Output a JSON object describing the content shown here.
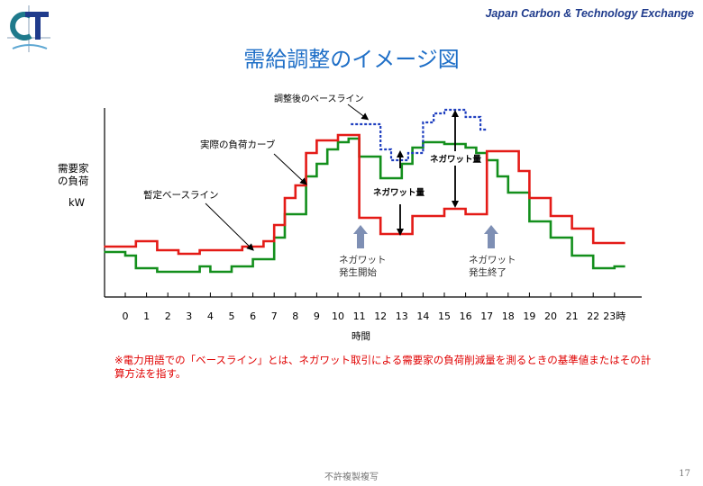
{
  "header": {
    "org_name": "Japan Carbon & Technology Exchange",
    "logo_text": "CT",
    "title": "需給調整のイメージ図"
  },
  "labels": {
    "y_axis_line1": "需要家",
    "y_axis_line2": "の負荷",
    "unit": "kW",
    "baseline_after": "調整後のベースライン",
    "actual_curve": "実際の負荷カーブ",
    "provisional_baseline": "暫定ベースライン",
    "negawatt_qty": "ネガワット量",
    "start_line1": "ネガワット",
    "start_line2": "発生開始",
    "end_line1": "ネガワット",
    "end_line2": "発生終了",
    "x_axis_title": "時間"
  },
  "colors": {
    "actual": "#e41b17",
    "baseline": "#138f1c",
    "adjusted": "#1f3fbf",
    "arrow": "#7e8fb4"
  },
  "chart_data": {
    "type": "line",
    "x": [
      0,
      1,
      2,
      3,
      4,
      5,
      6,
      7,
      8,
      9,
      10,
      11,
      12,
      13,
      14,
      15,
      16,
      17,
      18,
      19,
      20,
      21,
      22,
      23
    ],
    "tick_labels": [
      "0",
      "1",
      "2",
      "3",
      "4",
      "5",
      "6",
      "7",
      "8",
      "9",
      "10",
      "11",
      "12",
      "13",
      "14",
      "15",
      "16",
      "17",
      "18",
      "19",
      "20",
      "21",
      "22",
      "23時"
    ],
    "ylim": [
      0,
      100
    ],
    "series": [
      {
        "name": "実際の負荷カーブ",
        "points": [
          [
            -1,
            28
          ],
          [
            0,
            28
          ],
          [
            0,
            28
          ],
          [
            0.5,
            28
          ],
          [
            0.5,
            31
          ],
          [
            1.5,
            31
          ],
          [
            1.5,
            26
          ],
          [
            2.5,
            26
          ],
          [
            2.5,
            24
          ],
          [
            3.5,
            24
          ],
          [
            3.5,
            26
          ],
          [
            5,
            26
          ],
          [
            5,
            26
          ],
          [
            5.5,
            26
          ],
          [
            5.5,
            28
          ],
          [
            6.5,
            28
          ],
          [
            6.5,
            31
          ],
          [
            7,
            31
          ],
          [
            7,
            40
          ],
          [
            7.5,
            40
          ],
          [
            7.5,
            55
          ],
          [
            8,
            55
          ],
          [
            8,
            62
          ],
          [
            8.5,
            62
          ],
          [
            8.5,
            80
          ],
          [
            9,
            80
          ],
          [
            9,
            87
          ],
          [
            10,
            87
          ],
          [
            10,
            90
          ],
          [
            11,
            90
          ],
          [
            11,
            44
          ],
          [
            12,
            44
          ],
          [
            12,
            35
          ],
          [
            13.5,
            35
          ],
          [
            13.5,
            45
          ],
          [
            15,
            45
          ],
          [
            15,
            49
          ],
          [
            16,
            49
          ],
          [
            16,
            46
          ],
          [
            17,
            46
          ],
          [
            17,
            81
          ],
          [
            18.5,
            81
          ],
          [
            18.5,
            70
          ],
          [
            19,
            70
          ],
          [
            19,
            55
          ],
          [
            20,
            55
          ],
          [
            20,
            45
          ],
          [
            21,
            45
          ],
          [
            21,
            38
          ],
          [
            22,
            38
          ],
          [
            22,
            30
          ],
          [
            23.5,
            30
          ]
        ]
      },
      {
        "name": "暫定ベースライン",
        "points": [
          [
            -1,
            25
          ],
          [
            0,
            25
          ],
          [
            0,
            23
          ],
          [
            0.5,
            23
          ],
          [
            0.5,
            16
          ],
          [
            1.5,
            16
          ],
          [
            1.5,
            14
          ],
          [
            3.5,
            14
          ],
          [
            3.5,
            17
          ],
          [
            4,
            17
          ],
          [
            4,
            14
          ],
          [
            5,
            14
          ],
          [
            5,
            17
          ],
          [
            6,
            17
          ],
          [
            6,
            21
          ],
          [
            7,
            21
          ],
          [
            7,
            33
          ],
          [
            7.5,
            33
          ],
          [
            7.5,
            46
          ],
          [
            8.5,
            46
          ],
          [
            8.5,
            67
          ],
          [
            9,
            67
          ],
          [
            9,
            74
          ],
          [
            9.5,
            74
          ],
          [
            9.5,
            82
          ],
          [
            10,
            82
          ],
          [
            10,
            86
          ],
          [
            10.5,
            86
          ],
          [
            10.5,
            88
          ],
          [
            11,
            88
          ],
          [
            11,
            78
          ],
          [
            12,
            78
          ],
          [
            12,
            66
          ],
          [
            13,
            66
          ],
          [
            13,
            74
          ],
          [
            13.5,
            74
          ],
          [
            13.5,
            83
          ],
          [
            14,
            83
          ],
          [
            14,
            86
          ],
          [
            15,
            86
          ],
          [
            15,
            85
          ],
          [
            16,
            85
          ],
          [
            16,
            83
          ],
          [
            16.5,
            83
          ],
          [
            16.5,
            80
          ],
          [
            17,
            80
          ],
          [
            17,
            76
          ],
          [
            17.5,
            76
          ],
          [
            17.5,
            67
          ],
          [
            18,
            67
          ],
          [
            18,
            58
          ],
          [
            19,
            58
          ],
          [
            19,
            42
          ],
          [
            20,
            42
          ],
          [
            20,
            33
          ],
          [
            21,
            33
          ],
          [
            21,
            23
          ],
          [
            22,
            23
          ],
          [
            22,
            16
          ],
          [
            23,
            16
          ],
          [
            23,
            17
          ],
          [
            23.5,
            17
          ]
        ]
      },
      {
        "name": "調整後のベースライン",
        "points": [
          [
            10.6,
            96
          ],
          [
            11,
            96
          ],
          [
            11,
            96
          ],
          [
            12,
            96
          ],
          [
            12,
            82
          ],
          [
            12.5,
            82
          ],
          [
            12.5,
            76
          ],
          [
            13.3,
            76
          ],
          [
            13.3,
            80
          ],
          [
            14,
            80
          ],
          [
            14,
            97
          ],
          [
            14.5,
            97
          ],
          [
            14.5,
            102
          ],
          [
            15,
            102
          ],
          [
            15,
            104
          ],
          [
            16,
            104
          ],
          [
            16,
            100
          ],
          [
            16.7,
            100
          ],
          [
            16.7,
            93
          ],
          [
            17,
            93
          ]
        ]
      }
    ]
  },
  "note": "※電力用語での「ベースライン」とは、ネガワット取引による需要家の負荷削減量を測るときの基準値またはその計算方法を指す。",
  "footer": "不許複製複写",
  "page_number": "17"
}
